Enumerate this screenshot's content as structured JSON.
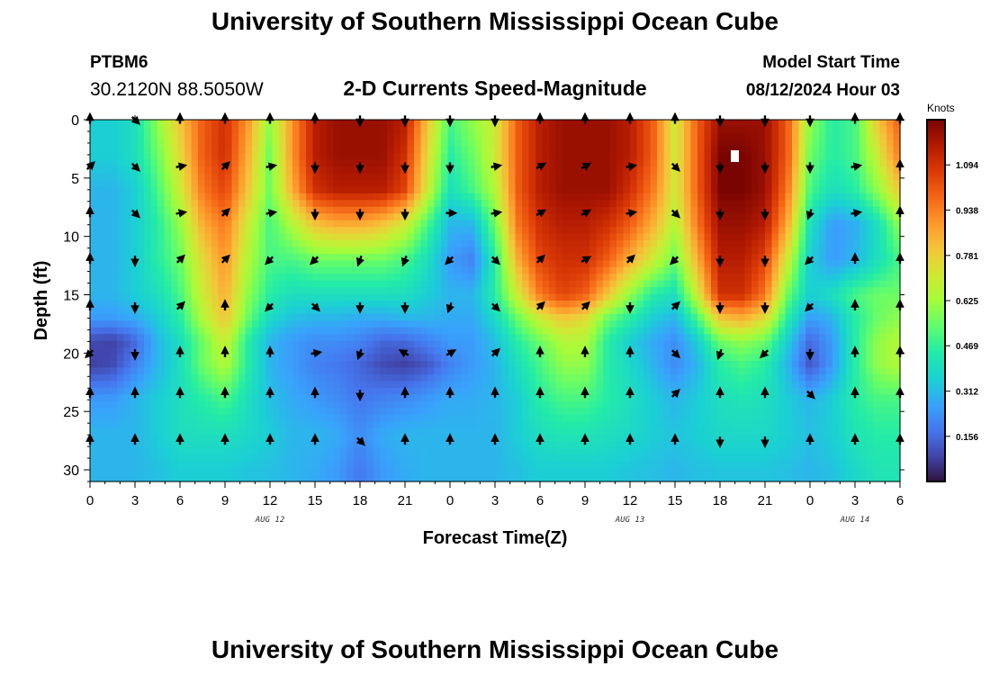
{
  "page": {
    "title": "University of Southern Mississippi Ocean Cube",
    "footer_title": "University of Southern Mississippi Ocean Cube"
  },
  "station": {
    "id": "PTBM6",
    "coords": "30.2120N  88.5050W"
  },
  "plot": {
    "subtitle": "2-D Currents Speed-Magnitude"
  },
  "model": {
    "label": "Model Start Time",
    "value": "08/12/2024 Hour 03"
  },
  "chart_data": {
    "type": "heatmap",
    "title": "2-D Currents Speed-Magnitude",
    "xlabel": "Forecast Time(Z)",
    "ylabel": "Depth (ft)",
    "x_ticks": [
      "0",
      "3",
      "6",
      "9",
      "12",
      "15",
      "18",
      "21",
      "0",
      "3",
      "6",
      "9",
      "12",
      "15",
      "18",
      "21",
      "0",
      "3",
      "6"
    ],
    "x_hours": [
      0,
      3,
      6,
      9,
      12,
      15,
      18,
      21,
      24,
      27,
      30,
      33,
      36,
      39,
      42,
      45,
      48,
      51,
      54
    ],
    "date_labels": [
      {
        "label": "AUG 12",
        "hour": 12
      },
      {
        "label": "AUG 13",
        "hour": 36
      },
      {
        "label": "AUG 14",
        "hour": 51
      }
    ],
    "y_ticks": [
      "0",
      "5",
      "10",
      "15",
      "20",
      "25",
      "30"
    ],
    "y_values": [
      0,
      5,
      10,
      15,
      20,
      25,
      30
    ],
    "ylim": [
      0,
      31
    ],
    "xlim": [
      0,
      54
    ],
    "colorbar": {
      "label": "Knots",
      "ticks": [
        "1.094",
        "0.938",
        "0.781",
        "0.625",
        "0.469",
        "0.312",
        "0.156"
      ],
      "values": [
        1.094,
        0.938,
        0.781,
        0.625,
        0.469,
        0.312,
        0.156
      ],
      "range": [
        0.0,
        1.25
      ]
    },
    "speed_grid": {
      "hours": [
        0,
        1.5,
        3,
        4.5,
        6,
        7.5,
        9,
        10.5,
        12,
        13.5,
        15,
        16.5,
        18,
        19.5,
        21,
        22.5,
        24,
        25.5,
        27,
        28.5,
        30,
        31.5,
        33,
        34.5,
        36,
        37.5,
        39,
        40.5,
        42,
        43.5,
        45,
        46.5,
        48,
        49.5,
        51,
        52.5,
        54
      ],
      "depths": [
        0,
        3,
        6,
        9,
        12,
        15,
        17,
        19,
        21,
        24,
        27,
        30
      ],
      "values": [
        [
          0.35,
          0.35,
          0.4,
          0.6,
          0.8,
          1.0,
          1.1,
          0.9,
          0.6,
          0.9,
          1.15,
          1.2,
          1.2,
          1.2,
          1.15,
          0.8,
          0.5,
          0.6,
          0.7,
          1.0,
          1.15,
          1.2,
          1.2,
          1.2,
          1.15,
          1.0,
          0.7,
          1.0,
          1.2,
          1.2,
          1.2,
          1.0,
          0.6,
          0.45,
          0.5,
          0.8,
          1.0
        ],
        [
          0.35,
          0.35,
          0.4,
          0.55,
          0.75,
          1.0,
          1.1,
          0.85,
          0.55,
          0.9,
          1.15,
          1.2,
          1.2,
          1.2,
          1.1,
          0.75,
          0.45,
          0.55,
          0.7,
          1.0,
          1.15,
          1.2,
          1.2,
          1.2,
          1.15,
          1.0,
          0.7,
          1.0,
          1.25,
          1.25,
          1.2,
          1.0,
          0.55,
          0.45,
          0.5,
          0.7,
          0.95
        ],
        [
          0.3,
          0.3,
          0.35,
          0.5,
          0.7,
          0.95,
          1.05,
          0.8,
          0.55,
          0.85,
          1.1,
          1.15,
          1.15,
          1.15,
          1.05,
          0.7,
          0.4,
          0.5,
          0.65,
          1.0,
          1.15,
          1.2,
          1.2,
          1.2,
          1.1,
          0.95,
          0.7,
          1.0,
          1.25,
          1.25,
          1.2,
          0.95,
          0.5,
          0.4,
          0.45,
          0.6,
          0.8
        ],
        [
          0.3,
          0.3,
          0.35,
          0.45,
          0.6,
          0.85,
          0.95,
          0.7,
          0.5,
          0.65,
          0.8,
          0.85,
          0.85,
          0.8,
          0.7,
          0.5,
          0.3,
          0.3,
          0.55,
          0.95,
          1.1,
          1.15,
          1.15,
          1.1,
          1.0,
          0.85,
          0.65,
          0.95,
          1.2,
          1.2,
          1.15,
          0.85,
          0.4,
          0.25,
          0.28,
          0.4,
          0.6
        ],
        [
          0.3,
          0.3,
          0.35,
          0.45,
          0.55,
          0.75,
          0.9,
          0.65,
          0.5,
          0.5,
          0.55,
          0.55,
          0.55,
          0.55,
          0.5,
          0.4,
          0.25,
          0.2,
          0.45,
          0.85,
          1.05,
          1.1,
          1.1,
          1.0,
          0.85,
          0.7,
          0.55,
          0.85,
          1.15,
          1.15,
          1.05,
          0.7,
          0.35,
          0.25,
          0.3,
          0.4,
          0.5
        ],
        [
          0.3,
          0.3,
          0.35,
          0.4,
          0.5,
          0.7,
          0.85,
          0.6,
          0.45,
          0.4,
          0.4,
          0.4,
          0.4,
          0.4,
          0.4,
          0.35,
          0.3,
          0.3,
          0.45,
          0.7,
          0.95,
          1.05,
          1.0,
          0.8,
          0.6,
          0.45,
          0.4,
          0.7,
          1.1,
          1.1,
          0.95,
          0.55,
          0.35,
          0.4,
          0.5,
          0.55,
          0.55
        ],
        [
          0.25,
          0.25,
          0.28,
          0.35,
          0.45,
          0.65,
          0.8,
          0.55,
          0.38,
          0.32,
          0.3,
          0.3,
          0.28,
          0.28,
          0.3,
          0.3,
          0.28,
          0.28,
          0.38,
          0.55,
          0.7,
          0.8,
          0.75,
          0.55,
          0.45,
          0.35,
          0.3,
          0.5,
          0.8,
          0.85,
          0.75,
          0.45,
          0.25,
          0.3,
          0.45,
          0.55,
          0.6
        ],
        [
          0.1,
          0.08,
          0.15,
          0.3,
          0.4,
          0.55,
          0.7,
          0.45,
          0.3,
          0.25,
          0.22,
          0.22,
          0.2,
          0.15,
          0.15,
          0.2,
          0.25,
          0.25,
          0.32,
          0.45,
          0.55,
          0.65,
          0.65,
          0.45,
          0.35,
          0.28,
          0.22,
          0.35,
          0.55,
          0.6,
          0.55,
          0.35,
          0.15,
          0.25,
          0.45,
          0.6,
          0.65
        ],
        [
          0.08,
          0.1,
          0.2,
          0.3,
          0.4,
          0.55,
          0.65,
          0.45,
          0.3,
          0.25,
          0.2,
          0.18,
          0.15,
          0.1,
          0.08,
          0.12,
          0.2,
          0.25,
          0.3,
          0.4,
          0.5,
          0.6,
          0.6,
          0.45,
          0.38,
          0.3,
          0.22,
          0.3,
          0.45,
          0.5,
          0.45,
          0.3,
          0.12,
          0.25,
          0.45,
          0.6,
          0.65
        ],
        [
          0.25,
          0.25,
          0.3,
          0.35,
          0.4,
          0.45,
          0.5,
          0.4,
          0.32,
          0.28,
          0.25,
          0.22,
          0.18,
          0.2,
          0.22,
          0.25,
          0.28,
          0.28,
          0.3,
          0.35,
          0.45,
          0.5,
          0.5,
          0.45,
          0.4,
          0.35,
          0.3,
          0.35,
          0.4,
          0.42,
          0.4,
          0.35,
          0.3,
          0.35,
          0.45,
          0.5,
          0.5
        ],
        [
          0.3,
          0.3,
          0.3,
          0.35,
          0.4,
          0.4,
          0.4,
          0.38,
          0.35,
          0.3,
          0.3,
          0.28,
          0.22,
          0.28,
          0.3,
          0.3,
          0.3,
          0.3,
          0.3,
          0.35,
          0.4,
          0.42,
          0.42,
          0.4,
          0.38,
          0.35,
          0.33,
          0.35,
          0.38,
          0.38,
          0.38,
          0.35,
          0.32,
          0.35,
          0.42,
          0.45,
          0.45
        ],
        [
          0.3,
          0.3,
          0.3,
          0.32,
          0.35,
          0.35,
          0.35,
          0.33,
          0.32,
          0.3,
          0.28,
          0.25,
          0.18,
          0.25,
          0.28,
          0.3,
          0.3,
          0.3,
          0.3,
          0.32,
          0.35,
          0.35,
          0.35,
          0.35,
          0.33,
          0.32,
          0.3,
          0.32,
          0.33,
          0.33,
          0.33,
          0.32,
          0.3,
          0.32,
          0.38,
          0.42,
          0.42
        ]
      ]
    },
    "vectors": {
      "depths": [
        0,
        4,
        8,
        12,
        16,
        20,
        23.5,
        27.5
      ],
      "hours": [
        0,
        3,
        6,
        9,
        12,
        15,
        18,
        21,
        24,
        27,
        30,
        33,
        36,
        39,
        42,
        45,
        48,
        51,
        54
      ],
      "directions_deg": [
        [
          0,
          135,
          0,
          0,
          0,
          0,
          180,
          180,
          180,
          180,
          0,
          0,
          0,
          0,
          180,
          180,
          180,
          0,
          0
        ],
        [
          45,
          135,
          80,
          45,
          80,
          180,
          180,
          180,
          180,
          80,
          60,
          60,
          80,
          135,
          180,
          180,
          180,
          80,
          0
        ],
        [
          0,
          135,
          80,
          45,
          80,
          180,
          180,
          180,
          90,
          80,
          60,
          60,
          80,
          135,
          180,
          180,
          200,
          80,
          0
        ],
        [
          0,
          180,
          45,
          45,
          225,
          225,
          200,
          200,
          225,
          135,
          45,
          60,
          45,
          225,
          180,
          180,
          225,
          0,
          0
        ],
        [
          0,
          180,
          45,
          0,
          225,
          135,
          180,
          180,
          200,
          135,
          45,
          45,
          180,
          45,
          180,
          180,
          225,
          0,
          0
        ],
        [
          225,
          180,
          0,
          0,
          0,
          80,
          200,
          300,
          60,
          45,
          0,
          0,
          0,
          135,
          200,
          225,
          180,
          0,
          0
        ],
        [
          0,
          0,
          0,
          0,
          0,
          0,
          180,
          0,
          0,
          0,
          0,
          0,
          0,
          45,
          0,
          0,
          135,
          0,
          0
        ],
        [
          0,
          0,
          0,
          0,
          0,
          0,
          135,
          0,
          0,
          0,
          0,
          0,
          0,
          0,
          180,
          180,
          0,
          0,
          0
        ]
      ]
    }
  }
}
